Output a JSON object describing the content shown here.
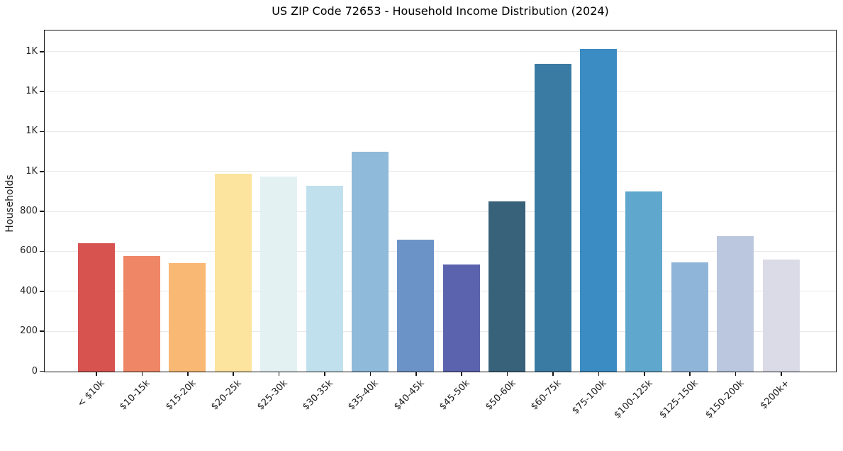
{
  "chart_data": {
    "type": "bar",
    "title": "US ZIP Code 72653 - Household Income Distribution (2024)",
    "xlabel": "",
    "ylabel": "Households",
    "categories": [
      "< $10k",
      "$10-15k",
      "$15-20k",
      "$20-25k",
      "$25-30k",
      "$30-35k",
      "$35-40k",
      "$40-45k",
      "$45-50k",
      "$50-60k",
      "$60-75k",
      "$75-100k",
      "$100-125k",
      "$125-150k",
      "$150-200k",
      "$200k+"
    ],
    "values": [
      643,
      577,
      544,
      991,
      976,
      931,
      1099,
      661,
      536,
      853,
      1540,
      1615,
      900,
      547,
      678,
      561
    ],
    "bar_colors": [
      "#d65350",
      "#ef8767",
      "#f9b873",
      "#fce49f",
      "#e3f1f3",
      "#c0e0ed",
      "#8fbad9",
      "#6b93c7",
      "#5c63ae",
      "#38617a",
      "#3a7ba3",
      "#3a8cc3",
      "#5fa7cd",
      "#8fb5d9",
      "#bac7df",
      "#dbdae7"
    ],
    "ylim": [
      0,
      1704
    ],
    "yticks": [
      {
        "value": 0,
        "label": "0"
      },
      {
        "value": 200,
        "label": "200"
      },
      {
        "value": 400,
        "label": "400"
      },
      {
        "value": 600,
        "label": "600"
      },
      {
        "value": 800,
        "label": "800"
      },
      {
        "value": 1000,
        "label": "1K"
      },
      {
        "value": 1200,
        "label": "1K"
      },
      {
        "value": 1400,
        "label": "1K"
      },
      {
        "value": 1600,
        "label": "1K"
      }
    ],
    "grid": "horizontal",
    "grid_color": "#e9e9e9",
    "axis_color": "#151515",
    "legend": "none",
    "x_tick_rotation_deg": 45
  }
}
